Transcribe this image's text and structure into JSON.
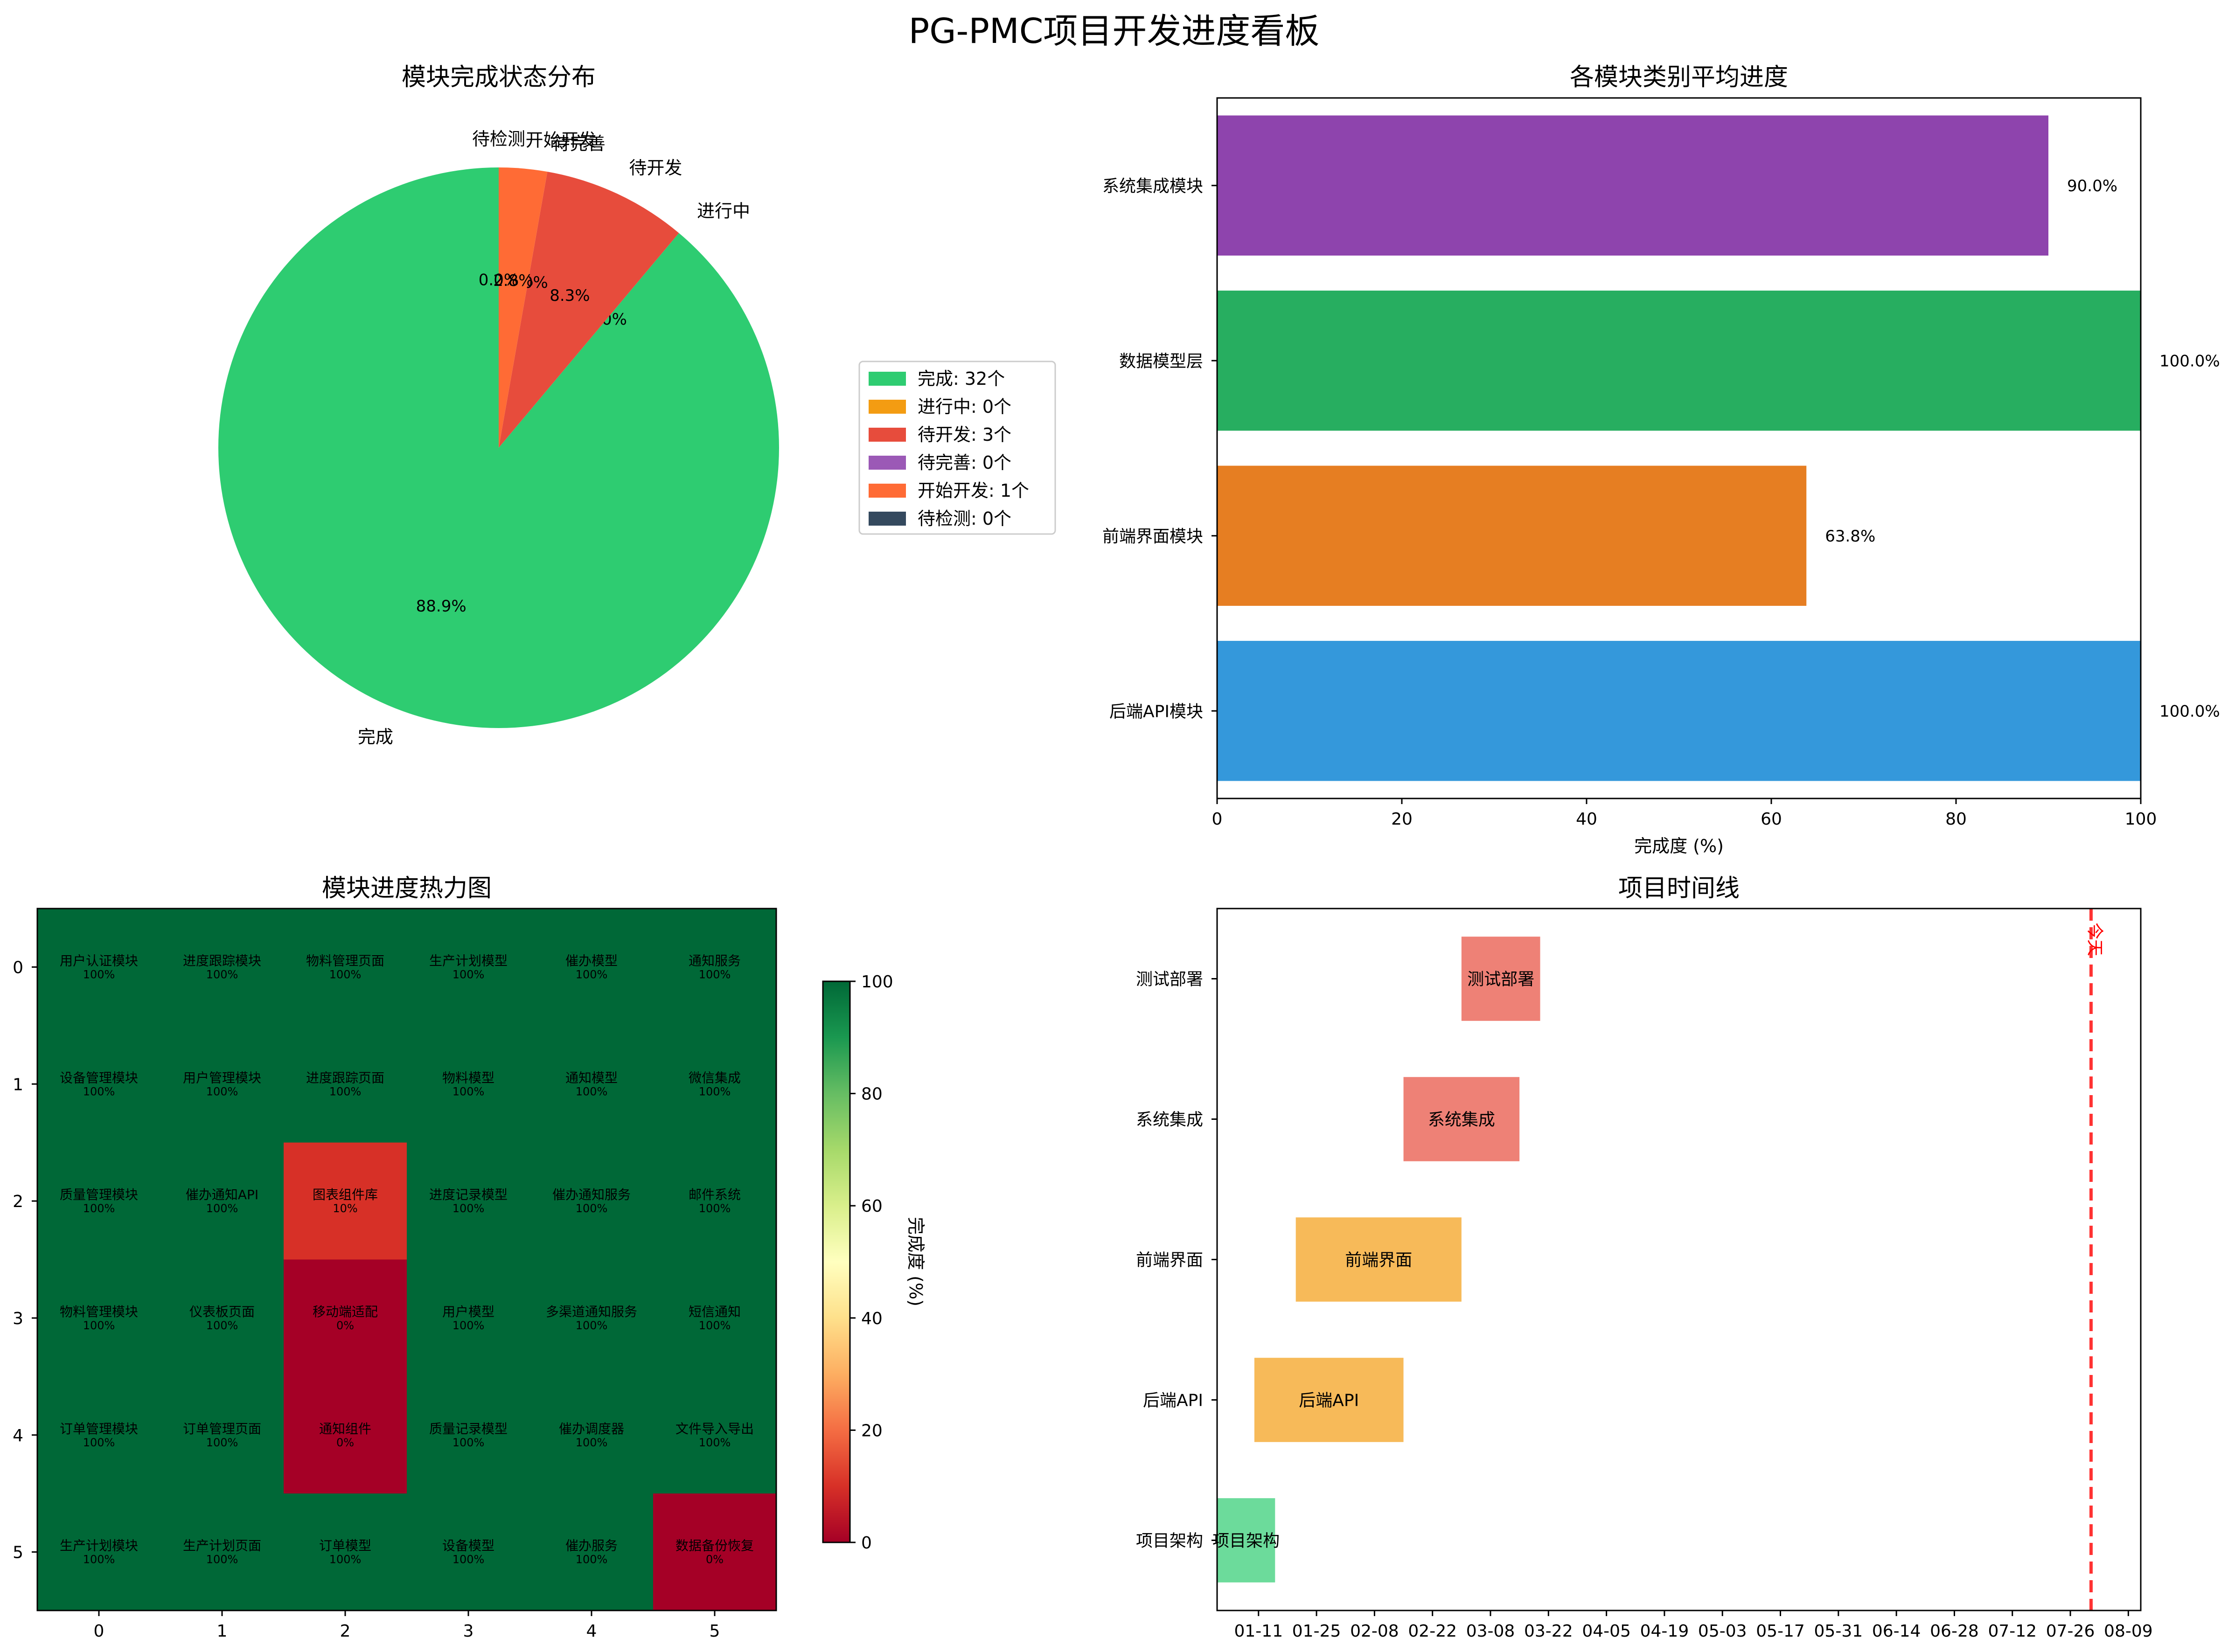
{
  "title": "PG-PMC项目开发进度看板",
  "chart_data": [
    {
      "type": "pie",
      "title": "模块完成状态分布",
      "slices": [
        {
          "label": "完成",
          "value": 32,
          "pct_label": "88.9%",
          "color": "#2ecc71"
        },
        {
          "label": "进行中",
          "value": 0,
          "pct_label": "0.0%",
          "color": "#f39c12"
        },
        {
          "label": "待开发",
          "value": 3,
          "pct_label": "8.3%",
          "color": "#e74c3c"
        },
        {
          "label": "待完善",
          "value": 0,
          "pct_label": "0.0%",
          "color": "#9b59b6"
        },
        {
          "label": "开始开发",
          "value": 1,
          "pct_label": "2.8%",
          "color": "#ff6b35"
        },
        {
          "label": "待检测",
          "value": 0,
          "pct_label": "0.0%",
          "color": "#34495e"
        }
      ],
      "legend": [
        "完成: 32个",
        "进行中: 0个",
        "待开发: 3个",
        "待完善: 0个",
        "开始开发: 1个",
        "待检测: 0个"
      ],
      "legend_placement": "right"
    },
    {
      "type": "bar",
      "orientation": "horizontal",
      "title": "各模块类别平均进度",
      "categories": [
        "后端API模块",
        "前端界面模块",
        "数据模型层",
        "系统集成模块"
      ],
      "values": [
        100.0,
        63.8,
        100.0,
        90.0
      ],
      "value_labels": [
        "100.0%",
        "63.8%",
        "100.0%",
        "90.0%"
      ],
      "colors": [
        "#3498db",
        "#e67e22",
        "#27ae60",
        "#8e44ad"
      ],
      "xlabel": "完成度 (%)",
      "xlim": [
        0,
        100
      ],
      "xticks": [
        "0",
        "20",
        "40",
        "60",
        "80",
        "100"
      ]
    },
    {
      "type": "heatmap",
      "title": "模块进度热力图",
      "colormap": "RdYlGn",
      "vmin": 0,
      "vmax": 100,
      "colorbar_label": "完成度 (%)",
      "colorbar_ticks": [
        "0",
        "20",
        "40",
        "60",
        "80",
        "100"
      ],
      "xticks": [
        "0",
        "1",
        "2",
        "3",
        "4",
        "5"
      ],
      "yticks": [
        "0",
        "1",
        "2",
        "3",
        "4",
        "5"
      ],
      "names": [
        [
          "用户认证模块",
          "进度跟踪模块",
          "物料管理页面",
          "生产计划模型",
          "催办模型",
          "通知服务"
        ],
        [
          "设备管理模块",
          "用户管理模块",
          "进度跟踪页面",
          "物料模型",
          "通知模型",
          "微信集成"
        ],
        [
          "质量管理模块",
          "催办通知API",
          "图表组件库",
          "进度记录模型",
          "催办通知服务",
          "邮件系统"
        ],
        [
          "物料管理模块",
          "仪表板页面",
          "移动端适配",
          "用户模型",
          "多渠道通知服务",
          "短信通知"
        ],
        [
          "订单管理模块",
          "订单管理页面",
          "通知组件",
          "质量记录模型",
          "催办调度器",
          "文件导入导出"
        ],
        [
          "生产计划模块",
          "生产计划页面",
          "订单模型",
          "设备模型",
          "催办服务",
          "数据备份恢复"
        ]
      ],
      "values": [
        [
          100,
          100,
          100,
          100,
          100,
          100
        ],
        [
          100,
          100,
          100,
          100,
          100,
          100
        ],
        [
          100,
          100,
          10,
          100,
          100,
          100
        ],
        [
          100,
          100,
          0,
          100,
          100,
          100
        ],
        [
          100,
          100,
          0,
          100,
          100,
          100
        ],
        [
          100,
          100,
          100,
          100,
          100,
          0
        ]
      ]
    },
    {
      "type": "gantt",
      "title": "项目时间线",
      "xticks": [
        "01-11",
        "01-25",
        "02-08",
        "02-22",
        "03-08",
        "03-22",
        "04-05",
        "04-19",
        "05-03",
        "05-17",
        "05-31",
        "06-14",
        "06-28",
        "07-12",
        "07-26",
        "08-09"
      ],
      "tasks": [
        {
          "name": "项目架构",
          "start": "01-01",
          "end": "01-15",
          "color": "#2ecc71"
        },
        {
          "name": "后端API",
          "start": "01-10",
          "end": "02-15",
          "color": "#f39c12"
        },
        {
          "name": "前端界面",
          "start": "01-20",
          "end": "03-01",
          "color": "#f39c12"
        },
        {
          "name": "系统集成",
          "start": "02-15",
          "end": "03-15",
          "color": "#e74c3c"
        },
        {
          "name": "测试部署",
          "start": "03-01",
          "end": "03-20",
          "color": "#e74c3c"
        }
      ],
      "today_label": "今天",
      "today_date": "07-31"
    }
  ]
}
